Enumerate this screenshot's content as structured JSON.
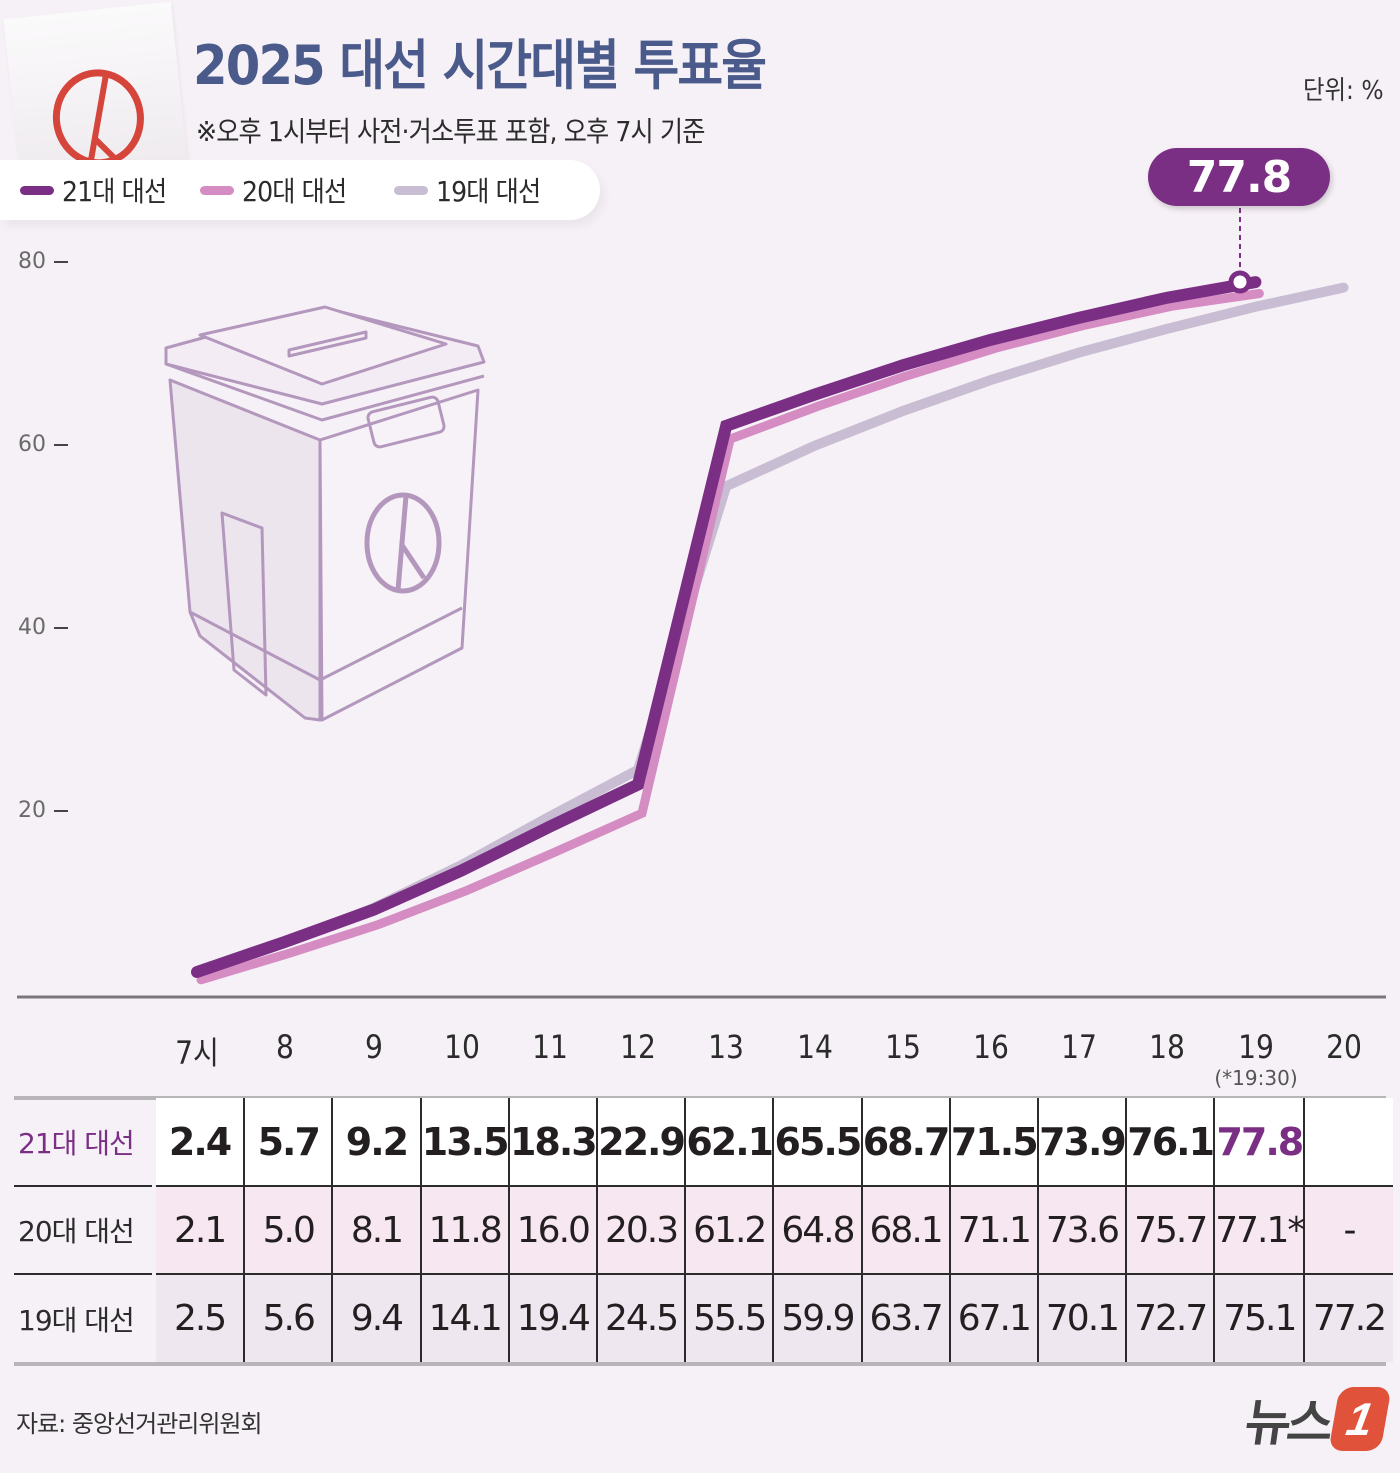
{
  "header": {
    "title": "2025 대선 시간대별 투표율",
    "subtitle": "※오후 1시부터 사전·거소투표 포함, 오후 7시 기준",
    "unit": "단위: %"
  },
  "legend": [
    {
      "label": "21대 대선",
      "color": "#7b2f84"
    },
    {
      "label": "20대 대선",
      "color": "#d48cc2"
    },
    {
      "label": "19대 대선",
      "color": "#c8bdd2"
    }
  ],
  "callout": {
    "value": "77.8"
  },
  "y_ticks": [
    "80",
    "60",
    "40",
    "20"
  ],
  "x_labels": [
    "7시",
    "8",
    "9",
    "10",
    "11",
    "12",
    "13",
    "14",
    "15",
    "16",
    "17",
    "18",
    "19",
    "20"
  ],
  "x_note": "(*19:30)",
  "table": {
    "rows": [
      {
        "label": "21대 대선",
        "values": [
          "2.4",
          "5.7",
          "9.2",
          "13.5",
          "18.3",
          "22.9",
          "62.1",
          "65.5",
          "68.7",
          "71.5",
          "73.9",
          "76.1",
          "77.8",
          ""
        ]
      },
      {
        "label": "20대 대선",
        "values": [
          "2.1",
          "5.0",
          "8.1",
          "11.8",
          "16.0",
          "20.3",
          "61.2",
          "64.8",
          "68.1",
          "71.1",
          "73.6",
          "75.7",
          "77.1*",
          "-"
        ]
      },
      {
        "label": "19대 대선",
        "values": [
          "2.5",
          "5.6",
          "9.4",
          "14.1",
          "19.4",
          "24.5",
          "55.5",
          "59.9",
          "63.7",
          "67.1",
          "70.1",
          "72.7",
          "75.1",
          "77.2"
        ]
      }
    ],
    "highlight_color": "#7b2f84"
  },
  "footer": {
    "source": "자료: 중앙선거관리위원회",
    "logo_text": "뉴스",
    "logo_mark": "1"
  },
  "chart_data": {
    "type": "line",
    "title": "2025 대선 시간대별 투표율",
    "subtitle": "※오후 1시부터 사전·거소투표 포함, 오후 7시 기준",
    "xlabel": "",
    "ylabel": "단위: %",
    "x": [
      "7시",
      "8",
      "9",
      "10",
      "11",
      "12",
      "13",
      "14",
      "15",
      "16",
      "17",
      "18",
      "19",
      "20"
    ],
    "ylim": [
      0,
      80
    ],
    "y_ticks": [
      20,
      40,
      60,
      80
    ],
    "grid": false,
    "legend_position": "top-left",
    "series": [
      {
        "name": "21대 대선",
        "color": "#7b2f84",
        "values": [
          2.4,
          5.7,
          9.2,
          13.5,
          18.3,
          22.9,
          62.1,
          65.5,
          68.7,
          71.5,
          73.9,
          76.1,
          77.8,
          null
        ]
      },
      {
        "name": "20대 대선",
        "color": "#d48cc2",
        "values": [
          2.1,
          5.0,
          8.1,
          11.8,
          16.0,
          20.3,
          61.2,
          64.8,
          68.1,
          71.1,
          73.6,
          75.7,
          77.1,
          null
        ]
      },
      {
        "name": "19대 대선",
        "color": "#c8bdd2",
        "values": [
          2.5,
          5.6,
          9.4,
          14.1,
          19.4,
          24.5,
          55.5,
          59.9,
          63.7,
          67.1,
          70.1,
          72.7,
          75.1,
          77.2
        ]
      }
    ],
    "annotations": [
      {
        "x": "19",
        "series": "21대 대선",
        "text": "77.8"
      },
      {
        "x": "19",
        "series": "20대 대선",
        "text": "(*19:30)"
      }
    ]
  }
}
